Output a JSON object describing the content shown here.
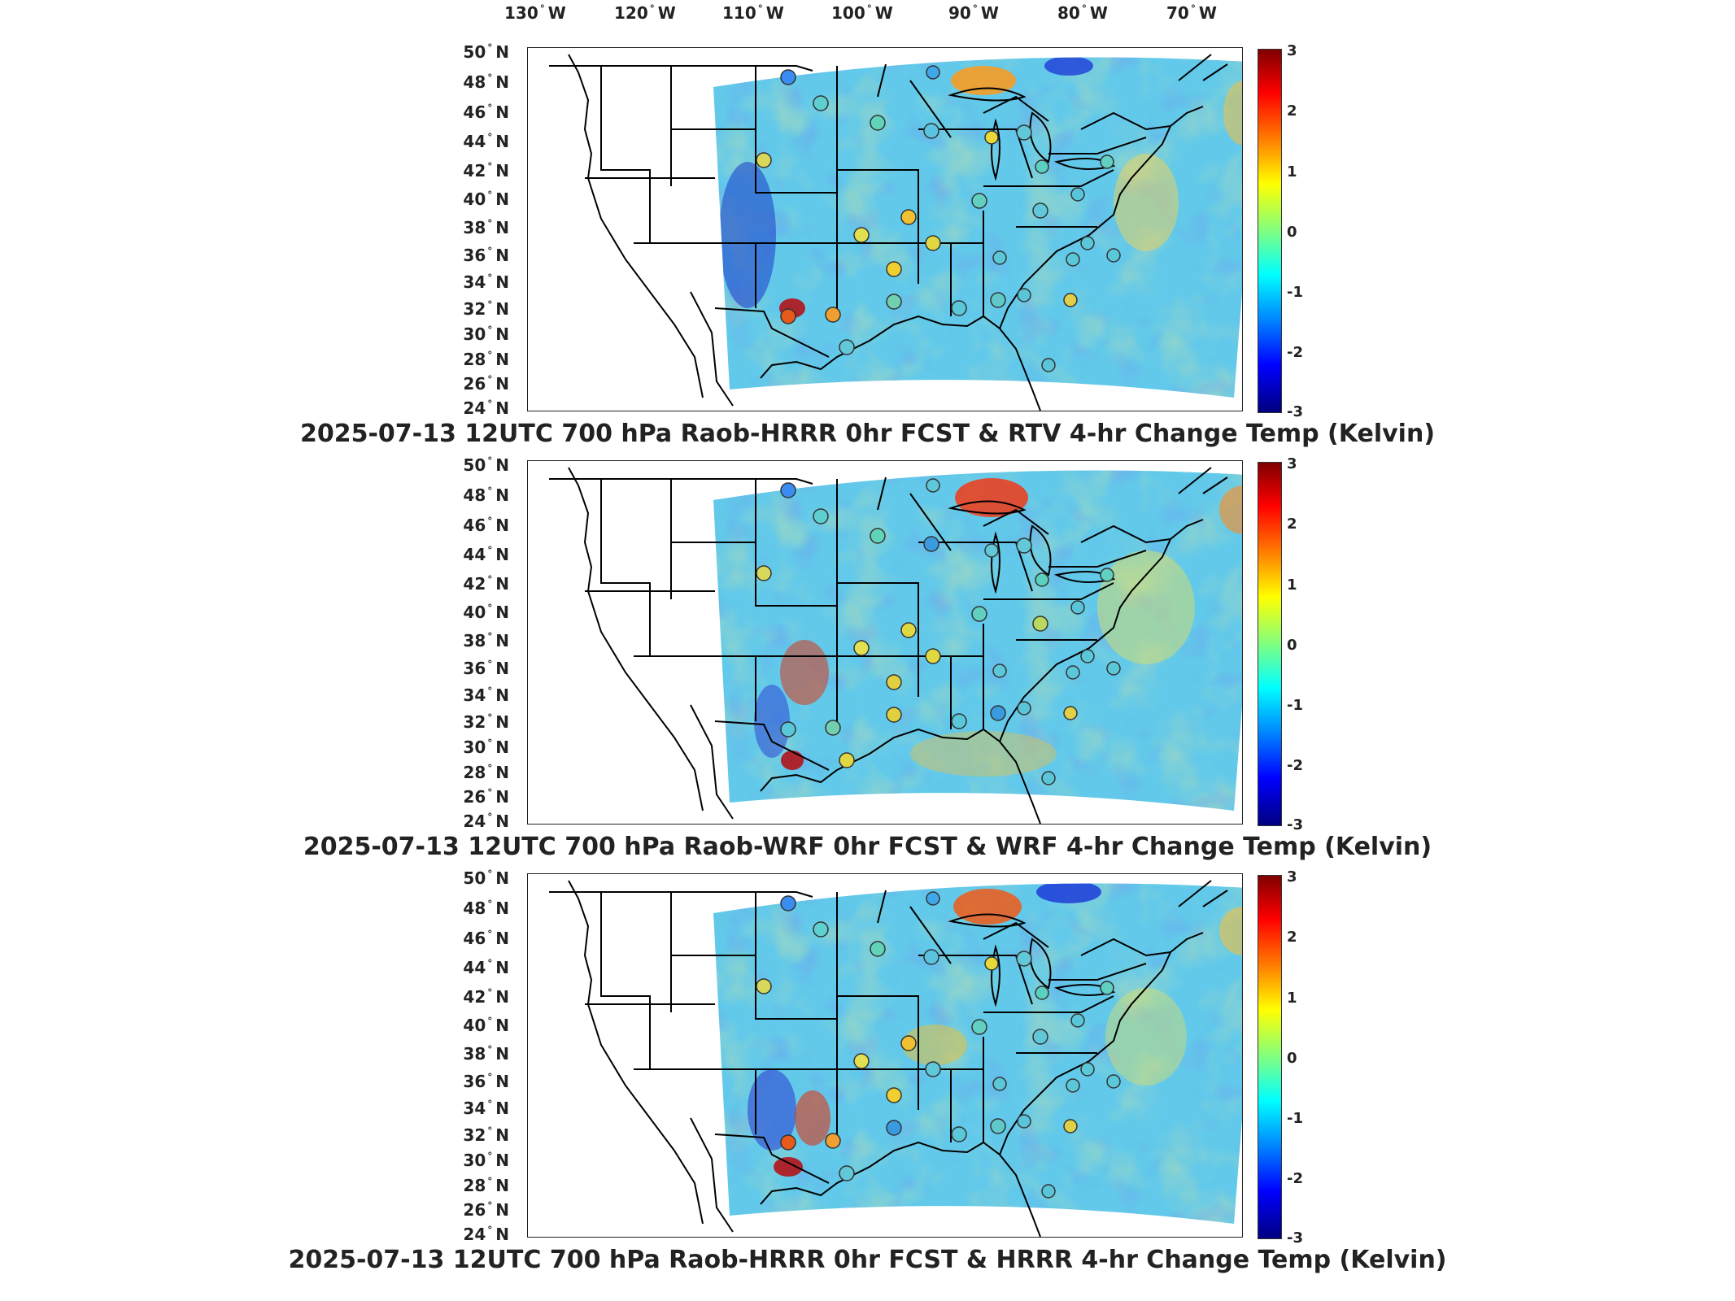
{
  "lon_labels": [
    "130",
    "120",
    "110",
    "100",
    "90",
    "80",
    "70"
  ],
  "lon_suffix": "W",
  "lat_labels": [
    "50",
    "48",
    "46",
    "44",
    "42",
    "40",
    "38",
    "36",
    "34",
    "32",
    "30",
    "28",
    "26",
    "24"
  ],
  "lat_suffix": "N",
  "colorbar_ticks": [
    "3",
    "2",
    "1",
    "0",
    "-1",
    "-2",
    "-3"
  ],
  "panels": [
    {
      "caption": "2025-07-13 12UTC 700 hPa Raob-HRRR 0hr FCST & RTV 4-hr Change Temp (Kelvin)"
    },
    {
      "caption": "2025-07-13 12UTC 700 hPa Raob-WRF 0hr FCST & WRF 4-hr Change Temp (Kelvin)"
    },
    {
      "caption": "2025-07-13 12UTC 700 hPa Raob-HRRR 0hr FCST & HRRR 4-hr Change Temp (Kelvin)"
    }
  ],
  "colors": {
    "field_base": "#5ec8e8",
    "warm": "#ffd24a",
    "hot": "#e8401c",
    "cold": "#2a4fd8",
    "border": "#000000"
  }
}
